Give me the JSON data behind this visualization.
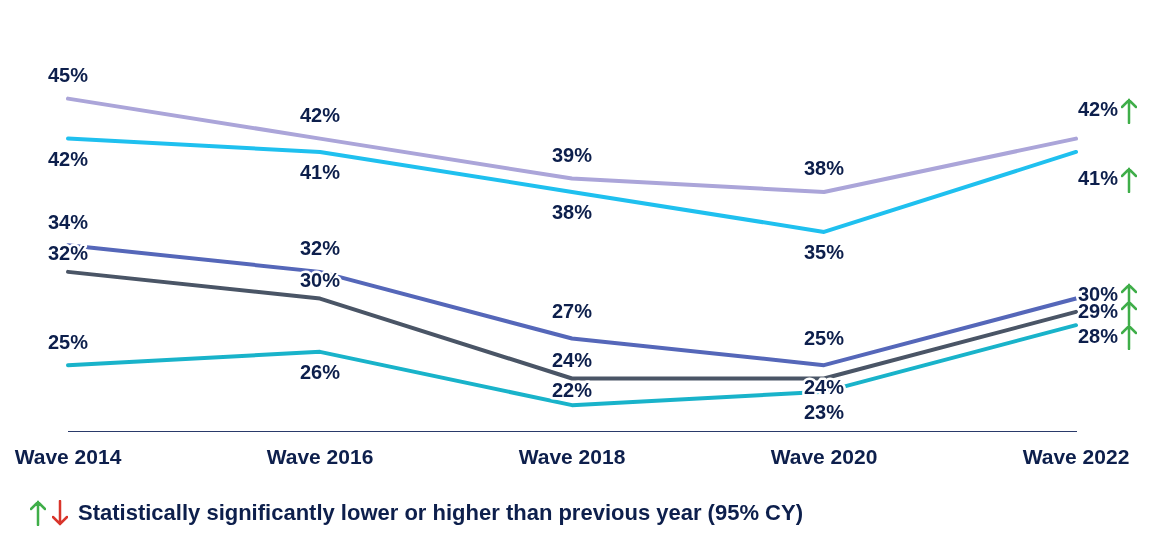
{
  "chart_data": {
    "type": "line",
    "categories": [
      "Wave 2014",
      "Wave 2016",
      "Wave 2018",
      "Wave 2020",
      "Wave 2022"
    ],
    "series": [
      {
        "color": "#aba5d9",
        "values": [
          45,
          42,
          39,
          38,
          42
        ],
        "value_labels": [
          "45%",
          "42%",
          "39%",
          "38%",
          "42%"
        ]
      },
      {
        "color": "#1fc0ef",
        "values": [
          42,
          41,
          38,
          35,
          41
        ],
        "value_labels": [
          "42%",
          "41%",
          "38%",
          "35%",
          "41%"
        ]
      },
      {
        "color": "#5567b9",
        "values": [
          34,
          32,
          27,
          25,
          30
        ],
        "value_labels": [
          "34%",
          "32%",
          "27%",
          "25%",
          "30%"
        ]
      },
      {
        "color": "#4a5566",
        "values": [
          32,
          30,
          24,
          24,
          29
        ],
        "value_labels": [
          "32%",
          "30%",
          "24%",
          "24%",
          "29%"
        ]
      },
      {
        "color": "#19b3ca",
        "values": [
          25,
          26,
          22,
          23,
          28
        ],
        "value_labels": [
          "25%",
          "26%",
          "22%",
          "23%",
          "28%"
        ]
      }
    ],
    "legend": false,
    "grid": false,
    "marker": "none",
    "line_style": "solid",
    "annotations": [
      "Statistically significantly lower or higher than previous year (95% CY)"
    ]
  }
}
